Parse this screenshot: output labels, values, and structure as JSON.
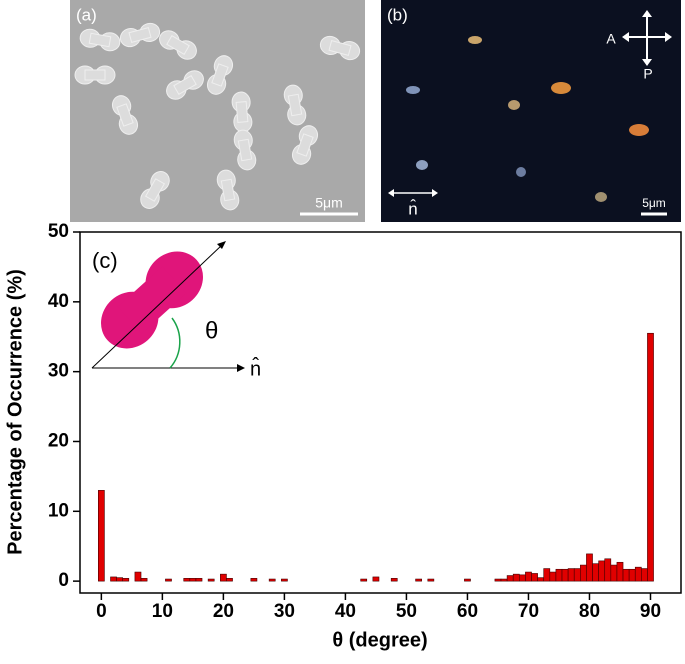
{
  "panels": {
    "a": {
      "label": "(a)",
      "scale": "5μm"
    },
    "b": {
      "label": "(b)",
      "analyzer": "A",
      "polarizer": "P",
      "director": "n̂",
      "scale": "5μm"
    }
  },
  "chart_data": {
    "type": "histogram",
    "panel_label": "(c)",
    "angle_label": "θ",
    "director_label": "n̂",
    "xlabel": "θ (degree)",
    "ylabel": "Percentage of Occurrence (%)",
    "color": "#e00000",
    "bins": [
      -0.5,
      0.5,
      1.5,
      2.5,
      3.5,
      4.5,
      5.5,
      6.5,
      7.5,
      8.5,
      9.5,
      10.5,
      11.5,
      12.5,
      13.5,
      14.5,
      15.5,
      16.5,
      17.5,
      18.5,
      19.5,
      20.5,
      21.5,
      22.5,
      23.5,
      24.5,
      25.5,
      26.5,
      27.5,
      28.5,
      29.5,
      30.5,
      31.5,
      32.5,
      33.5,
      34.5,
      35.5,
      36.5,
      37.5,
      38.5,
      39.5,
      40.5,
      41.5,
      42.5,
      43.5,
      44.5,
      45.5,
      46.5,
      47.5,
      48.5,
      49.5,
      50.5,
      51.5,
      52.5,
      53.5,
      54.5,
      55.5,
      56.5,
      57.5,
      58.5,
      59.5,
      60.5,
      61.5,
      62.5,
      63.5,
      64.5,
      65.5,
      66.5,
      67.5,
      68.5,
      69.5,
      70.5,
      71.5,
      72.5,
      73.5,
      74.5,
      75.5,
      76.5,
      77.5,
      78.5,
      79.5,
      80.5,
      81.5,
      82.5,
      83.5,
      84.5,
      85.5,
      86.5,
      87.5,
      88.5,
      89.5,
      90.5
    ],
    "values": [
      13,
      0,
      0.6,
      0.5,
      0.4,
      0,
      1.3,
      0.4,
      0,
      0,
      0,
      0.3,
      0,
      0,
      0.4,
      0.4,
      0.4,
      0,
      0.3,
      0,
      1.0,
      0.4,
      0,
      0,
      0,
      0.4,
      0,
      0,
      0.3,
      0,
      0.3,
      0,
      0,
      0,
      0,
      0,
      0,
      0,
      0,
      0,
      0,
      0,
      0,
      0.3,
      0,
      0.6,
      0,
      0,
      0.4,
      0,
      0,
      0,
      0.3,
      0,
      0.3,
      0,
      0,
      0,
      0,
      0,
      0.3,
      0,
      0,
      0,
      0,
      0.3,
      0.3,
      0.8,
      1.0,
      0.9,
      1.3,
      1.1,
      0.5,
      1.8,
      1.3,
      1.7,
      1.7,
      1.8,
      1.8,
      2.3,
      3.9,
      2.5,
      2.9,
      3.2,
      2.3,
      2.7,
      1.7,
      1.7,
      2.0,
      1.8,
      35.5
    ],
    "xlim": [
      -3.5,
      95
    ],
    "ylim": [
      -1.7,
      50
    ],
    "xticks": [
      0,
      10,
      20,
      30,
      40,
      50,
      60,
      70,
      80,
      90
    ],
    "yticks": [
      0,
      10,
      20,
      30,
      40,
      50
    ]
  }
}
